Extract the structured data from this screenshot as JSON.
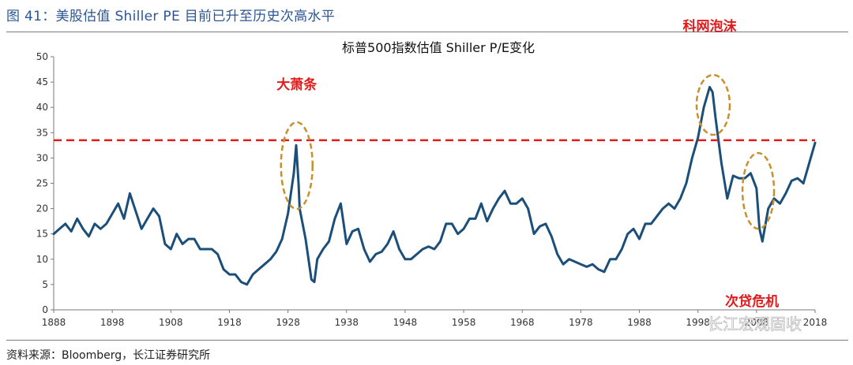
{
  "figure_title": "图 41：美股估值 Shiller PE 目前已升至历史次高水平",
  "source_note": "资料来源：Bloomberg，长江证券研究所",
  "watermark": "长江宏观固收",
  "colors": {
    "series": "#1b4f7a",
    "reference": "#e31a1c",
    "highlight_ellipse": "#c8902c",
    "title_text": "#2b5693"
  },
  "chart_data": {
    "type": "line",
    "title": "标普500指数估值 Shiller P/E变化",
    "xlabel": "",
    "ylabel": "",
    "xlim": [
      1888,
      2018
    ],
    "ylim": [
      0,
      50
    ],
    "yticks": [
      0,
      5,
      10,
      15,
      20,
      25,
      30,
      35,
      40,
      45,
      50
    ],
    "xticks": [
      1888,
      1898,
      1908,
      1918,
      1928,
      1938,
      1948,
      1958,
      1968,
      1978,
      1988,
      1998,
      2008,
      2018
    ],
    "reference_line": {
      "y": 33.5,
      "style": "dashed"
    },
    "series": [
      {
        "name": "Shiller P/E",
        "points": [
          [
            1888,
            15
          ],
          [
            1889,
            16
          ],
          [
            1890,
            17
          ],
          [
            1891,
            15.5
          ],
          [
            1892,
            18
          ],
          [
            1893,
            16
          ],
          [
            1894,
            14.5
          ],
          [
            1895,
            17
          ],
          [
            1896,
            16
          ],
          [
            1897,
            17
          ],
          [
            1898,
            19
          ],
          [
            1899,
            21
          ],
          [
            1900,
            18
          ],
          [
            1901,
            23
          ],
          [
            1902,
            19.5
          ],
          [
            1903,
            16
          ],
          [
            1904,
            18
          ],
          [
            1905,
            20
          ],
          [
            1906,
            18.5
          ],
          [
            1907,
            13
          ],
          [
            1908,
            12
          ],
          [
            1909,
            15
          ],
          [
            1910,
            13
          ],
          [
            1911,
            14
          ],
          [
            1912,
            14
          ],
          [
            1913,
            12
          ],
          [
            1914,
            12
          ],
          [
            1915,
            12
          ],
          [
            1916,
            11
          ],
          [
            1917,
            8
          ],
          [
            1918,
            7
          ],
          [
            1919,
            7
          ],
          [
            1920,
            5.5
          ],
          [
            1921,
            5
          ],
          [
            1922,
            7
          ],
          [
            1923,
            8
          ],
          [
            1924,
            9
          ],
          [
            1925,
            10
          ],
          [
            1926,
            11.5
          ],
          [
            1927,
            14
          ],
          [
            1928,
            19
          ],
          [
            1929,
            27
          ],
          [
            1929.4,
            32.5
          ],
          [
            1929.8,
            25
          ],
          [
            1930,
            20
          ],
          [
            1931,
            14
          ],
          [
            1932,
            6
          ],
          [
            1932.5,
            5.5
          ],
          [
            1933,
            10
          ],
          [
            1934,
            12
          ],
          [
            1935,
            13.5
          ],
          [
            1936,
            18
          ],
          [
            1937,
            21
          ],
          [
            1938,
            13
          ],
          [
            1939,
            15.5
          ],
          [
            1940,
            16
          ],
          [
            1941,
            12
          ],
          [
            1942,
            9.5
          ],
          [
            1943,
            11
          ],
          [
            1944,
            11.5
          ],
          [
            1945,
            13
          ],
          [
            1946,
            15.5
          ],
          [
            1947,
            12
          ],
          [
            1948,
            10
          ],
          [
            1949,
            10
          ],
          [
            1950,
            11
          ],
          [
            1951,
            12
          ],
          [
            1952,
            12.5
          ],
          [
            1953,
            12
          ],
          [
            1954,
            13.5
          ],
          [
            1955,
            17
          ],
          [
            1956,
            17
          ],
          [
            1957,
            15
          ],
          [
            1958,
            16
          ],
          [
            1959,
            18
          ],
          [
            1960,
            18
          ],
          [
            1961,
            21
          ],
          [
            1962,
            17.5
          ],
          [
            1963,
            20
          ],
          [
            1964,
            22
          ],
          [
            1965,
            23.5
          ],
          [
            1966,
            21
          ],
          [
            1967,
            21
          ],
          [
            1968,
            22
          ],
          [
            1969,
            20
          ],
          [
            1970,
            15
          ],
          [
            1971,
            16.5
          ],
          [
            1972,
            17
          ],
          [
            1973,
            14.5
          ],
          [
            1974,
            11
          ],
          [
            1975,
            9
          ],
          [
            1976,
            10
          ],
          [
            1977,
            9.5
          ],
          [
            1978,
            9
          ],
          [
            1979,
            8.5
          ],
          [
            1980,
            9
          ],
          [
            1981,
            8
          ],
          [
            1982,
            7.5
          ],
          [
            1983,
            10
          ],
          [
            1984,
            10
          ],
          [
            1985,
            12
          ],
          [
            1986,
            15
          ],
          [
            1987,
            16
          ],
          [
            1988,
            14
          ],
          [
            1989,
            17
          ],
          [
            1990,
            17
          ],
          [
            1991,
            18.5
          ],
          [
            1992,
            20
          ],
          [
            1993,
            21
          ],
          [
            1994,
            20
          ],
          [
            1995,
            22
          ],
          [
            1996,
            25
          ],
          [
            1997,
            30
          ],
          [
            1998,
            34
          ],
          [
            1999,
            40
          ],
          [
            2000,
            44
          ],
          [
            2000.5,
            43
          ],
          [
            2001,
            38
          ],
          [
            2002,
            29
          ],
          [
            2003,
            22
          ],
          [
            2004,
            26.5
          ],
          [
            2005,
            26
          ],
          [
            2006,
            26
          ],
          [
            2007,
            27
          ],
          [
            2008,
            24
          ],
          [
            2008.5,
            16
          ],
          [
            2009,
            13.5
          ],
          [
            2010,
            20
          ],
          [
            2011,
            22
          ],
          [
            2012,
            21
          ],
          [
            2013,
            23
          ],
          [
            2014,
            25.5
          ],
          [
            2015,
            26
          ],
          [
            2016,
            25
          ],
          [
            2017,
            29
          ],
          [
            2018,
            33
          ]
        ]
      }
    ],
    "annotations": [
      {
        "text": "大萧条",
        "x": 1929.5,
        "y": 28
      },
      {
        "text": "科网泡沫",
        "x": 2000,
        "y": 38
      },
      {
        "text": "次贷危机",
        "x": 2007.5,
        "y": 21
      }
    ]
  }
}
